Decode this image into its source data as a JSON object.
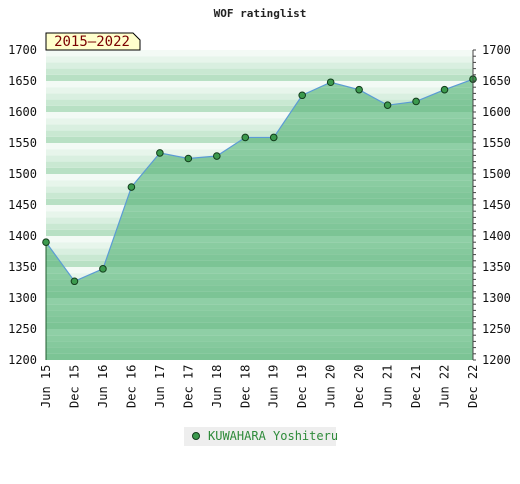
{
  "chart_data": {
    "type": "area",
    "title": "WOF ratinglist",
    "period_badge": "2015–2022",
    "categories": [
      "Jun 15",
      "Dec 15",
      "Jun 16",
      "Dec 16",
      "Jun 17",
      "Dec 17",
      "Jun 18",
      "Dec 18",
      "Jun 19",
      "Dec 19",
      "Jun 20",
      "Dec 20",
      "Jun 21",
      "Dec 21",
      "Jun 22",
      "Dec 22"
    ],
    "series": [
      {
        "name": "KUWAHARA Yoshiteru",
        "values": [
          1390,
          1327,
          1347,
          1479,
          1534,
          1525,
          1529,
          1559,
          1559,
          1627,
          1648,
          1636,
          1611,
          1617,
          1636,
          1653
        ]
      }
    ],
    "ylim": [
      1200,
      1700
    ],
    "y_ticks": [
      1200,
      1250,
      1300,
      1350,
      1400,
      1450,
      1500,
      1550,
      1600,
      1650,
      1700
    ],
    "y_tick_labels": [
      "1200",
      "1250",
      "1300",
      "1350",
      "1400",
      "1450",
      "1500",
      "1550",
      "1600",
      "1650",
      "1700"
    ],
    "xlabel": "",
    "ylabel": "",
    "grid": true,
    "legend_position": "bottom-center",
    "colors": {
      "line": "#5b9bd5",
      "marker_fill": "#3c9a4e",
      "marker_stroke": "#123d1c",
      "band_dark": "#7cc495",
      "band_light": "#eef7f0",
      "legend_text": "#2e8b3a",
      "badge_fill": "#ffffcc",
      "badge_text": "#7a0000"
    }
  }
}
